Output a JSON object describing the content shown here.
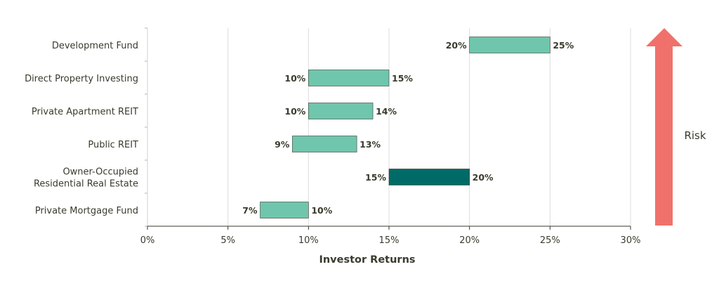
{
  "chart_data": {
    "type": "bar",
    "orientation": "horizontal-range",
    "categories": [
      "Development Fund",
      "Direct Property Investing",
      "Private Apartment REIT",
      "Public REIT",
      "Owner-Occupied\nResidential Real Estate",
      "Private Mortgage Fund"
    ],
    "ranges": [
      {
        "low": 20,
        "high": 25,
        "low_label": "20%",
        "high_label": "25%",
        "color": "#6fc6ac"
      },
      {
        "low": 10,
        "high": 15,
        "low_label": "10%",
        "high_label": "15%",
        "color": "#6fc6ac"
      },
      {
        "low": 10,
        "high": 14,
        "low_label": "10%",
        "high_label": "14%",
        "color": "#6fc6ac"
      },
      {
        "low": 9,
        "high": 13,
        "low_label": "9%",
        "high_label": "13%",
        "color": "#6fc6ac"
      },
      {
        "low": 15,
        "high": 20,
        "low_label": "15%",
        "high_label": "20%",
        "color": "#006b66"
      },
      {
        "low": 7,
        "high": 10,
        "low_label": "7%",
        "high_label": "10%",
        "color": "#6fc6ac"
      }
    ],
    "xlim": [
      0,
      30
    ],
    "xticks": [
      0,
      5,
      10,
      15,
      20,
      25,
      30
    ],
    "xtick_labels": [
      "0%",
      "5%",
      "10%",
      "15%",
      "20%",
      "25%",
      "30%"
    ],
    "xlabel": "Investor Returns",
    "ylabel": "",
    "grid": "vertical",
    "annotation": {
      "text": "Risk",
      "arrow": "up",
      "color": "#f0716b"
    }
  }
}
